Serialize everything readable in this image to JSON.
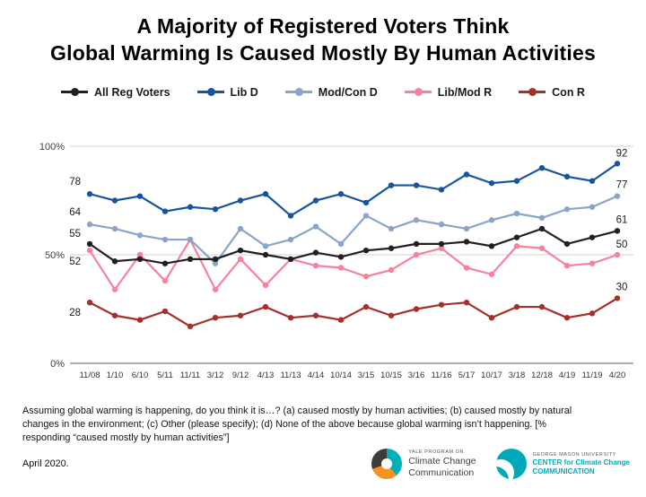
{
  "title": {
    "line1": "A Majority of Registered Voters Think",
    "line2": "Global Warming Is Caused Mostly By Human Activities"
  },
  "chart_data": {
    "type": "line",
    "title": "A Majority of Registered Voters Think Global Warming Is Caused Mostly By Human Activities",
    "xlabel": "",
    "ylabel": "",
    "ylim": [
      0,
      100
    ],
    "yticks": [
      0,
      50,
      100
    ],
    "ytick_labels": [
      "0%",
      "50%",
      "100%"
    ],
    "grid": "horizontal",
    "legend_position": "top",
    "categories": [
      "11/08",
      "1/10",
      "6/10",
      "5/11",
      "11/11",
      "3/12",
      "9/12",
      "4/13",
      "11/13",
      "4/14",
      "10/14",
      "3/15",
      "10/15",
      "3/16",
      "11/16",
      "5/17",
      "10/17",
      "3/18",
      "12/18",
      "4/19",
      "11/19",
      "4/20"
    ],
    "series": [
      {
        "name": "All Reg Voters",
        "color": "#231f20",
        "values": [
          55,
          47,
          48,
          46,
          48,
          48,
          52,
          50,
          48,
          51,
          49,
          52,
          53,
          55,
          55,
          56,
          54,
          58,
          62,
          55,
          58,
          61
        ],
        "first_label": "55",
        "last_label": "61",
        "first_label_dy": -8,
        "last_label_dy": -9
      },
      {
        "name": "Lib D",
        "color": "#17549e",
        "values": [
          78,
          75,
          77,
          70,
          72,
          71,
          75,
          78,
          68,
          75,
          78,
          74,
          82,
          82,
          80,
          87,
          83,
          84,
          90,
          86,
          84,
          92
        ],
        "first_label": "78",
        "last_label": "92",
        "first_label_dy": -10,
        "last_label_dy": -8
      },
      {
        "name": "Mod/Con D",
        "color": "#8aa5c8",
        "values": [
          64,
          62,
          59,
          57,
          57,
          46,
          62,
          54,
          57,
          63,
          55,
          68,
          62,
          66,
          64,
          62,
          66,
          69,
          67,
          71,
          72,
          77
        ],
        "first_label": "64",
        "last_label": "77",
        "first_label_dy": -10,
        "last_label_dy": -9
      },
      {
        "name": "Lib/Mod R",
        "color": "#f8829d",
        "values": [
          52,
          34,
          50,
          38,
          57,
          34,
          48,
          36,
          48,
          45,
          44,
          40,
          43,
          50,
          53,
          44,
          41,
          54,
          53,
          45,
          46,
          50
        ],
        "first_label": "52",
        "last_label": "50",
        "first_label_dy": 16,
        "last_label_dy": -8
      },
      {
        "name": "Con R",
        "color": "#a3302a",
        "values": [
          28,
          22,
          20,
          24,
          17,
          21,
          22,
          26,
          21,
          22,
          20,
          26,
          22,
          25,
          27,
          28,
          21,
          26,
          26,
          21,
          23,
          30
        ],
        "first_label": "28",
        "last_label": "30",
        "first_label_dy": 15,
        "last_label_dy": -9
      }
    ]
  },
  "footer": {
    "question": "Assuming global warming is happening, do you think it is…? (a) caused mostly by human activities; (b) caused mostly by natural changes in the environment; (c) Other (please specify); (d) None of the above because global warming isn’t happening. [% responding “caused mostly by human activities”]",
    "date": "April 2020."
  },
  "logos": {
    "yale": {
      "line1": "YALE PROGRAM ON",
      "line2": "Climate Change",
      "line3": "Communication"
    },
    "gmu": {
      "line1": "GEORGE MASON UNIVERSITY",
      "line2": "CENTER for Climate Change",
      "line3": "COMMUNICATION"
    }
  },
  "colors": {
    "grid_major": "#d0d0d0",
    "axis": "#7f7f7f",
    "tick_text": "#333333",
    "value_label": "#1a1a1a"
  }
}
